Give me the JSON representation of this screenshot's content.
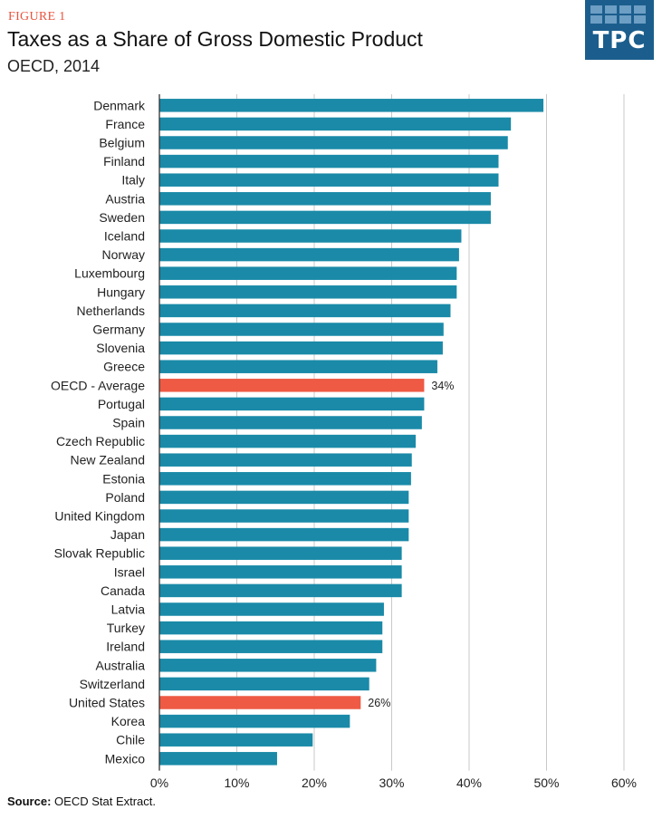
{
  "header": {
    "figure_label": "FIGURE 1",
    "title": "Taxes as a Share of Gross Domestic Product",
    "subtitle": "OECD, 2014"
  },
  "logo": {
    "text": "TPC",
    "color": "#1b5e8d"
  },
  "footer": {
    "source_label": "Source:",
    "source_text": "OECD Stat Extract."
  },
  "colors": {
    "bar": "#1a8aa8",
    "highlight": "#ee5a44",
    "grid": "#c8c8c8"
  },
  "chart_data": {
    "type": "bar",
    "orientation": "horizontal",
    "title": "Taxes as a Share of Gross Domestic Product",
    "subtitle": "OECD, 2014",
    "categories": [
      "Denmark",
      "France",
      "Belgium",
      "Finland",
      "Italy",
      "Austria",
      "Sweden",
      "Iceland",
      "Norway",
      "Luxembourg",
      "Hungary",
      "Netherlands",
      "Germany",
      "Slovenia",
      "Greece",
      "OECD - Average",
      "Portugal",
      "Spain",
      "Czech Republic",
      "New Zealand",
      "Estonia",
      "Poland",
      "United Kingdom",
      "Japan",
      "Slovak Republic",
      "Israel",
      "Canada",
      "Latvia",
      "Turkey",
      "Ireland",
      "Australia",
      "Switzerland",
      "United States",
      "Korea",
      "Chile",
      "Mexico"
    ],
    "values": [
      49.6,
      45.4,
      45.0,
      43.8,
      43.8,
      42.8,
      42.8,
      39.0,
      38.7,
      38.4,
      38.4,
      37.6,
      36.7,
      36.6,
      35.9,
      34.2,
      34.2,
      33.9,
      33.1,
      32.6,
      32.5,
      32.2,
      32.2,
      32.2,
      31.3,
      31.3,
      31.3,
      29.0,
      28.8,
      28.8,
      28.0,
      27.1,
      26.0,
      24.6,
      19.8,
      15.2
    ],
    "highlighted": [
      "OECD - Average",
      "United States"
    ],
    "data_labels": {
      "OECD - Average": "34%",
      "United States": "26%"
    },
    "x_ticks": [
      "0%",
      "10%",
      "20%",
      "30%",
      "40%",
      "50%",
      "60%"
    ],
    "xlim": [
      0,
      60
    ],
    "grid": true
  }
}
